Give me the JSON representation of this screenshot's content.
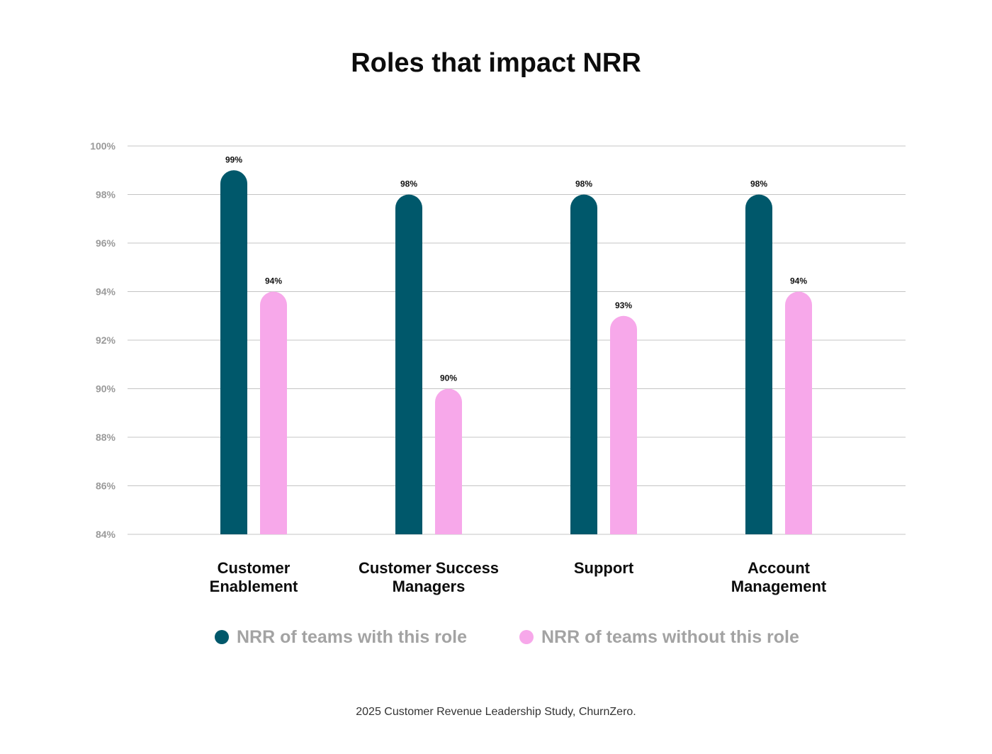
{
  "chart_data": {
    "type": "bar",
    "title": "Roles that impact NRR",
    "categories": [
      [
        "Customer",
        "Enablement"
      ],
      [
        "Customer Success",
        "Managers"
      ],
      [
        "Support"
      ],
      [
        "Account",
        "Management"
      ]
    ],
    "series": [
      {
        "name": "NRR of teams with this role",
        "values": [
          99,
          98,
          98,
          98
        ],
        "labels": [
          "99%",
          "98%",
          "98%",
          "98%"
        ],
        "color": "#00586b"
      },
      {
        "name": "NRR of teams without this role",
        "values": [
          94,
          90,
          93,
          94
        ],
        "labels": [
          "94%",
          "90%",
          "93%",
          "94%"
        ],
        "color": "#f7a8ea"
      }
    ],
    "ylim": [
      84,
      100
    ],
    "yticks": [
      "100%",
      "98%",
      "96%",
      "94%",
      "92%",
      "90%",
      "88%",
      "86%",
      "84%"
    ],
    "ytick_values": [
      100,
      98,
      96,
      94,
      92,
      90,
      88,
      86,
      84
    ],
    "grid": true,
    "legend_position": "bottom",
    "source": "2025 Customer Revenue Leadership Study, ChurnZero."
  }
}
